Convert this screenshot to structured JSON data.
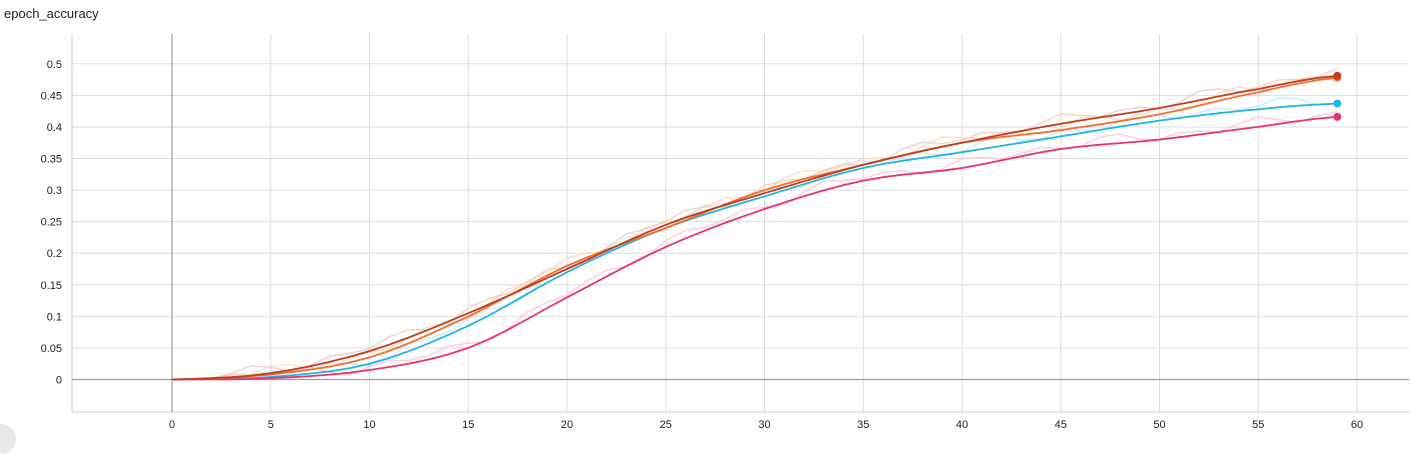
{
  "chart_data": {
    "type": "line",
    "title": "epoch_accuracy",
    "xlabel": "",
    "ylabel": "",
    "xlim": [
      -5,
      62
    ],
    "ylim": [
      -0.05,
      0.54
    ],
    "x_ticks": [
      0,
      5,
      10,
      15,
      20,
      25,
      30,
      35,
      40,
      45,
      50,
      55,
      60
    ],
    "y_ticks": [
      0,
      0.05,
      0.1,
      0.15,
      0.2,
      0.25,
      0.3,
      0.35,
      0.4,
      0.45,
      0.5
    ],
    "x_tick_labels": [
      "0",
      "5",
      "10",
      "15",
      "20",
      "25",
      "30",
      "35",
      "40",
      "45",
      "50",
      "55",
      "60"
    ],
    "y_tick_labels": [
      "0",
      "0.05",
      "0.1",
      "0.15",
      "0.2",
      "0.25",
      "0.3",
      "0.35",
      "0.4",
      "0.45",
      "0.5"
    ],
    "grid": true,
    "series": [
      {
        "color": "#1fb3e6",
        "x": [
          0,
          5,
          10,
          15,
          20,
          25,
          30,
          35,
          40,
          45,
          50,
          55,
          59
        ],
        "values": [
          0.0,
          0.004,
          0.025,
          0.085,
          0.17,
          0.24,
          0.29,
          0.335,
          0.36,
          0.385,
          0.41,
          0.428,
          0.437
        ]
      },
      {
        "color": "#e8336d",
        "x": [
          0,
          5,
          10,
          15,
          20,
          25,
          30,
          35,
          40,
          45,
          50,
          55,
          59
        ],
        "values": [
          0.0,
          0.002,
          0.015,
          0.05,
          0.13,
          0.21,
          0.27,
          0.315,
          0.335,
          0.365,
          0.38,
          0.4,
          0.416
        ]
      },
      {
        "color": "#f26f2c",
        "x": [
          0,
          5,
          10,
          15,
          20,
          25,
          30,
          35,
          40,
          45,
          50,
          55,
          59
        ],
        "values": [
          0.0,
          0.008,
          0.035,
          0.1,
          0.18,
          0.24,
          0.3,
          0.34,
          0.375,
          0.395,
          0.42,
          0.455,
          0.478
        ]
      },
      {
        "color": "#c13e1a",
        "x": [
          0,
          5,
          10,
          15,
          20,
          25,
          30,
          35,
          40,
          45,
          50,
          55,
          59
        ],
        "values": [
          0.0,
          0.01,
          0.045,
          0.105,
          0.175,
          0.245,
          0.295,
          0.34,
          0.375,
          0.405,
          0.43,
          0.46,
          0.481
        ]
      }
    ]
  }
}
